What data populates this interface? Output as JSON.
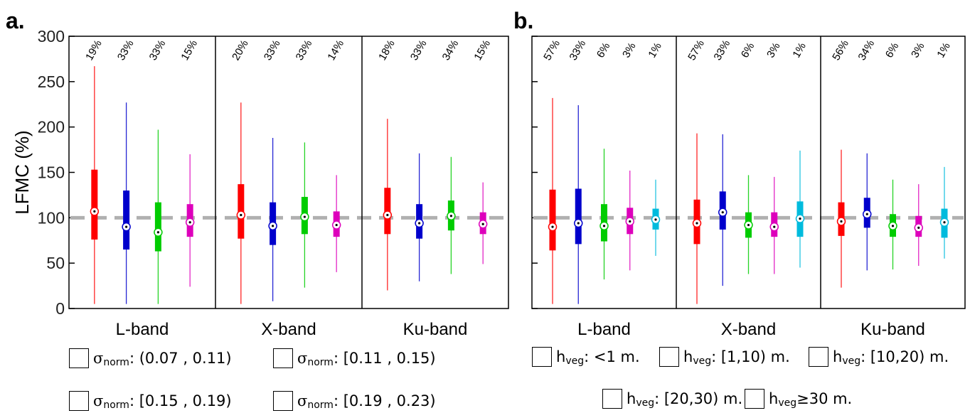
{
  "panel_a": {
    "label": "a.",
    "ylabel": "LFMC (%)",
    "legend": [
      {
        "symbol": "σ",
        "sub": "norm",
        "text": ": (0.07 , 0.11)",
        "color": "#ff0000"
      },
      {
        "symbol": "σ",
        "sub": "norm",
        "text": ": [0.11 , 0.15)",
        "color": "#0000cc"
      },
      {
        "symbol": "σ",
        "sub": "norm",
        "text": ": [0.15 , 0.19)",
        "color": "#00cc00"
      },
      {
        "symbol": "σ",
        "sub": "norm",
        "text": ": [0.19 , 0.23)",
        "color": "#dd00bb"
      }
    ]
  },
  "panel_b": {
    "label": "b.",
    "legend": [
      {
        "symbol": "h",
        "sub": "veg",
        "text": ": <1 m.",
        "color": "#ff0000"
      },
      {
        "symbol": "h",
        "sub": "veg",
        "text": ": [1,10) m.",
        "color": "#0000cc"
      },
      {
        "symbol": "h",
        "sub": "veg",
        "text": ": [10,20) m.",
        "color": "#00cc00"
      },
      {
        "symbol": "h",
        "sub": "veg",
        "text": ": [20,30) m.",
        "color": "#dd00bb"
      },
      {
        "symbol": "h",
        "sub": "veg",
        "text": " ≥30 m.",
        "color": "#00bbdd"
      }
    ]
  },
  "chart_data": [
    {
      "type": "box",
      "ylabel": "LFMC (%)",
      "ylim": [
        0,
        300
      ],
      "yticks": [
        0,
        50,
        100,
        150,
        200,
        250,
        300
      ],
      "reference_line": 100,
      "groups": [
        "L-band",
        "X-band",
        "Ku-band"
      ],
      "colors": [
        "#ff0000",
        "#0000cc",
        "#00cc00",
        "#dd00bb"
      ],
      "series": [
        {
          "group": "L-band",
          "boxes": [
            {
              "pct": "19%",
              "min": 5,
              "q1": 76,
              "median": 107,
              "q3": 153,
              "max": 267
            },
            {
              "pct": "33%",
              "min": 5,
              "q1": 65,
              "median": 90,
              "q3": 130,
              "max": 227
            },
            {
              "pct": "33%",
              "min": 5,
              "q1": 63,
              "median": 84,
              "q3": 117,
              "max": 197
            },
            {
              "pct": "15%",
              "min": 24,
              "q1": 79,
              "median": 95,
              "q3": 115,
              "max": 170
            }
          ]
        },
        {
          "group": "X-band",
          "boxes": [
            {
              "pct": "20%",
              "min": 5,
              "q1": 77,
              "median": 103,
              "q3": 137,
              "max": 227
            },
            {
              "pct": "33%",
              "min": 8,
              "q1": 70,
              "median": 91,
              "q3": 117,
              "max": 188
            },
            {
              "pct": "33%",
              "min": 23,
              "q1": 82,
              "median": 101,
              "q3": 123,
              "max": 183
            },
            {
              "pct": "14%",
              "min": 40,
              "q1": 79,
              "median": 92,
              "q3": 107,
              "max": 147
            }
          ]
        },
        {
          "group": "Ku-band",
          "boxes": [
            {
              "pct": "18%",
              "min": 20,
              "q1": 82,
              "median": 103,
              "q3": 133,
              "max": 209
            },
            {
              "pct": "33%",
              "min": 30,
              "q1": 77,
              "median": 94,
              "q3": 115,
              "max": 171
            },
            {
              "pct": "34%",
              "min": 38,
              "q1": 86,
              "median": 102,
              "q3": 119,
              "max": 167
            },
            {
              "pct": "15%",
              "min": 49,
              "q1": 82,
              "median": 93,
              "q3": 106,
              "max": 139
            }
          ]
        }
      ]
    },
    {
      "type": "box",
      "ylim": [
        0,
        300
      ],
      "reference_line": 100,
      "groups": [
        "L-band",
        "X-band",
        "Ku-band"
      ],
      "colors": [
        "#ff0000",
        "#0000cc",
        "#00cc00",
        "#dd00bb",
        "#00bbdd"
      ],
      "series": [
        {
          "group": "L-band",
          "boxes": [
            {
              "pct": "57%",
              "min": 5,
              "q1": 64,
              "median": 90,
              "q3": 131,
              "max": 232
            },
            {
              "pct": "33%",
              "min": 5,
              "q1": 71,
              "median": 94,
              "q3": 132,
              "max": 224
            },
            {
              "pct": "6%",
              "min": 32,
              "q1": 74,
              "median": 91,
              "q3": 115,
              "max": 176
            },
            {
              "pct": "3%",
              "min": 42,
              "q1": 82,
              "median": 96,
              "q3": 111,
              "max": 152
            },
            {
              "pct": "1%",
              "min": 58,
              "q1": 87,
              "median": 98,
              "q3": 110,
              "max": 142
            }
          ]
        },
        {
          "group": "X-band",
          "boxes": [
            {
              "pct": "57%",
              "min": 5,
              "q1": 71,
              "median": 94,
              "q3": 120,
              "max": 193
            },
            {
              "pct": "33%",
              "min": 25,
              "q1": 87,
              "median": 106,
              "q3": 129,
              "max": 192
            },
            {
              "pct": "6%",
              "min": 38,
              "q1": 78,
              "median": 92,
              "q3": 106,
              "max": 147
            },
            {
              "pct": "3%",
              "min": 38,
              "q1": 79,
              "median": 90,
              "q3": 106,
              "max": 145
            },
            {
              "pct": "1%",
              "min": 45,
              "q1": 79,
              "median": 99,
              "q3": 118,
              "max": 174
            }
          ]
        },
        {
          "group": "Ku-band",
          "boxes": [
            {
              "pct": "56%",
              "min": 23,
              "q1": 80,
              "median": 96,
              "q3": 117,
              "max": 175
            },
            {
              "pct": "34%",
              "min": 42,
              "q1": 89,
              "median": 104,
              "q3": 122,
              "max": 171
            },
            {
              "pct": "6%",
              "min": 43,
              "q1": 79,
              "median": 91,
              "q3": 104,
              "max": 142
            },
            {
              "pct": "3%",
              "min": 47,
              "q1": 79,
              "median": 89,
              "q3": 102,
              "max": 137
            },
            {
              "pct": "1%",
              "min": 55,
              "q1": 78,
              "median": 95,
              "q3": 110,
              "max": 156
            }
          ]
        }
      ]
    }
  ]
}
